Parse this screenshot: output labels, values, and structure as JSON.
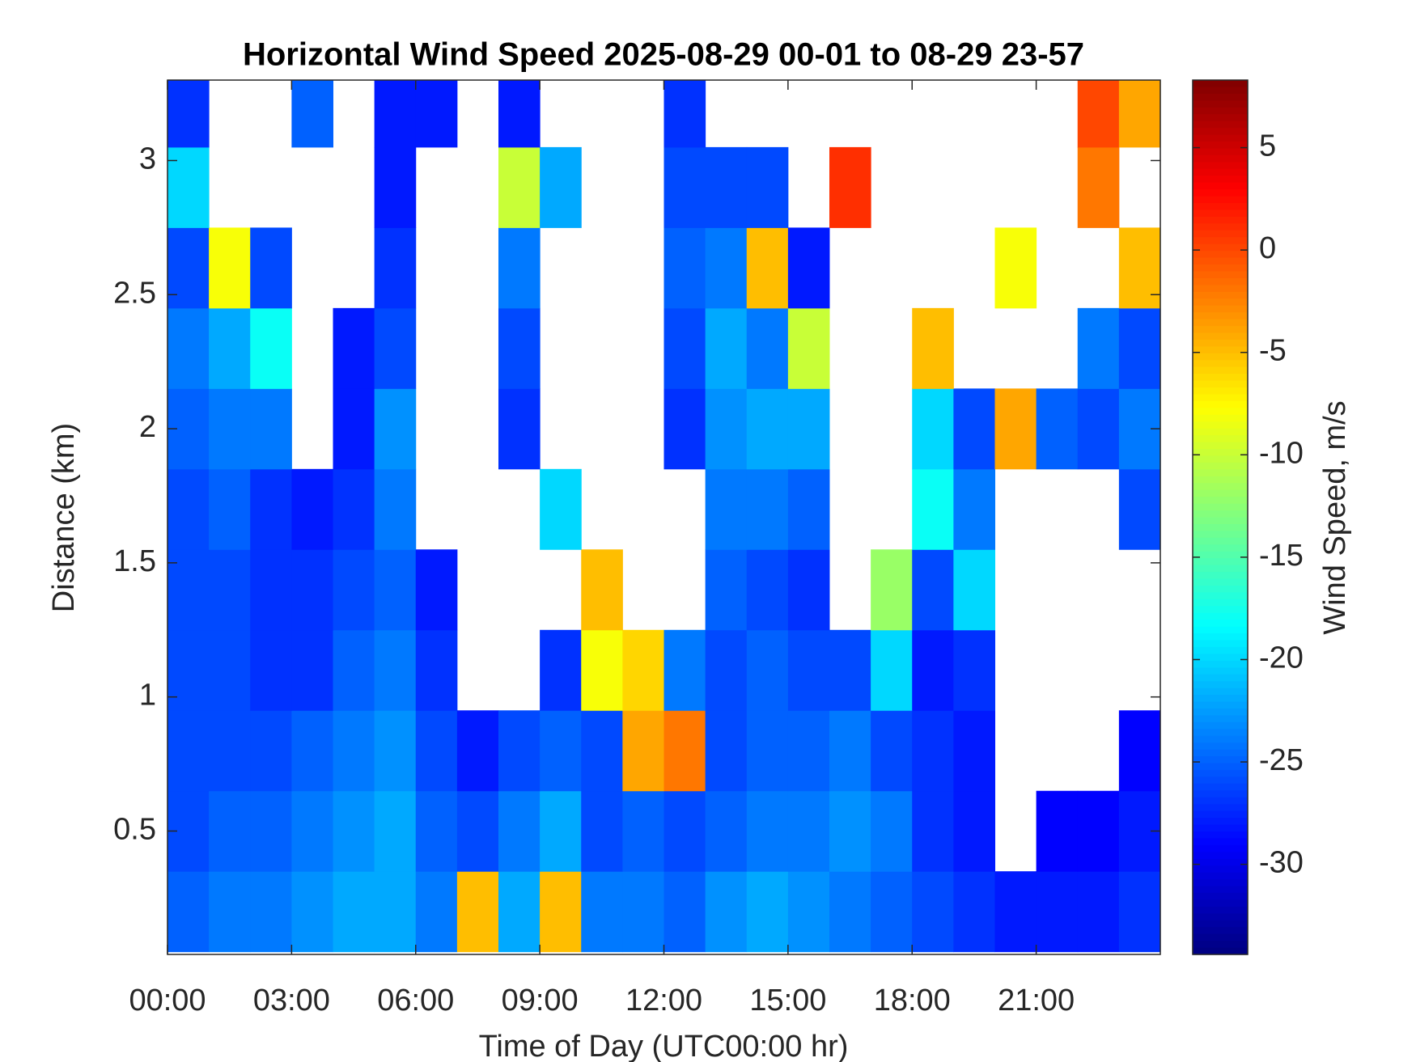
{
  "chart_data": {
    "type": "heatmap",
    "title": "Horizontal Wind Speed 2025-08-29 00-01 to 08-29 23-57",
    "x_label": "Time of Day (UTC00:00 hr)",
    "y_label": "Distance (km)",
    "colorbar_label": "Wind Speed, m/s",
    "colormap": "jet",
    "xlim": [
      0,
      24
    ],
    "ylim": [
      0.04,
      3.3
    ],
    "clim": [
      -34.4,
      8.3
    ],
    "xticks": [
      {
        "value": 0,
        "label": "00:00"
      },
      {
        "value": 3,
        "label": "03:00"
      },
      {
        "value": 6,
        "label": "06:00"
      },
      {
        "value": 9,
        "label": "09:00"
      },
      {
        "value": 12,
        "label": "12:00"
      },
      {
        "value": 15,
        "label": "15:00"
      },
      {
        "value": 18,
        "label": "18:00"
      },
      {
        "value": 21,
        "label": "21:00"
      }
    ],
    "yticks": [
      0.5,
      1,
      1.5,
      2,
      2.5,
      3
    ],
    "cticks": [
      -30,
      -25,
      -20,
      -15,
      -10,
      -5,
      0,
      5
    ],
    "x": [
      0.5,
      1.5,
      2.5,
      3.5,
      4.5,
      5.5,
      6.5,
      7.5,
      8.5,
      9.5,
      10.5,
      11.5,
      12.5,
      13.5,
      14.5,
      15.5,
      16.5,
      17.5,
      18.5,
      19.5,
      20.5,
      21.5,
      22.5,
      23.5
    ],
    "y": [
      0.2,
      0.5,
      0.8,
      1.1,
      1.4,
      1.7,
      2.0,
      2.3,
      2.6,
      2.9,
      3.2
    ],
    "z": [
      [
        -25,
        -24,
        -24,
        -23,
        -22,
        -22,
        -24,
        -5,
        -22,
        -5,
        -24,
        -24,
        -25,
        -23,
        -22,
        -23,
        -24,
        -25,
        -26,
        -27,
        -28,
        -28,
        -28,
        -27
      ],
      [
        -26,
        -25,
        -25,
        -24,
        -23,
        -22,
        -25,
        -26,
        -24,
        -22,
        -26,
        -25,
        -26,
        -25,
        -24,
        -24,
        -23,
        -24,
        -27,
        -28,
        null,
        -29,
        -29,
        -28
      ],
      [
        -26,
        -26,
        -26,
        -25,
        -24,
        -23,
        -26,
        -28,
        -26,
        -25,
        -26,
        -4,
        -2,
        -26,
        -25,
        -25,
        -24,
        -26,
        -27,
        -28,
        null,
        null,
        null,
        -29
      ],
      [
        -26,
        -26,
        -27,
        -27,
        -25,
        -24,
        -27,
        null,
        null,
        -27,
        -8,
        -6,
        -24,
        -26,
        -25,
        -26,
        -26,
        -20,
        -28,
        -27,
        null,
        null,
        null,
        null
      ],
      [
        -26,
        -26,
        -27,
        -27,
        -26,
        -25,
        -28,
        null,
        null,
        null,
        -5,
        null,
        null,
        -25,
        -26,
        -27,
        null,
        -12,
        -26,
        -20,
        null,
        null,
        null,
        null
      ],
      [
        -26,
        -25,
        -27,
        -28,
        -27,
        -24,
        null,
        null,
        null,
        -20,
        null,
        null,
        null,
        -24,
        -24,
        -25,
        null,
        null,
        -18,
        -24,
        null,
        null,
        null,
        -26
      ],
      [
        -25,
        -24,
        -24,
        null,
        -28,
        -23,
        null,
        null,
        -27,
        null,
        null,
        null,
        -27,
        -23,
        -22,
        -22,
        null,
        null,
        -20,
        -26,
        -4,
        -25,
        -26,
        -24
      ],
      [
        -24,
        -22,
        -18,
        null,
        -28,
        -26,
        null,
        null,
        -26,
        null,
        null,
        null,
        -26,
        -22,
        -24,
        -10,
        null,
        null,
        -5,
        null,
        null,
        null,
        -24,
        -26
      ],
      [
        -26,
        -8,
        -26,
        null,
        null,
        -27,
        null,
        null,
        -24,
        null,
        null,
        null,
        -25,
        -24,
        -5,
        -28,
        null,
        null,
        null,
        null,
        -8,
        null,
        null,
        -5
      ],
      [
        -20,
        null,
        null,
        null,
        null,
        -28,
        null,
        null,
        -10,
        -22,
        null,
        null,
        -26,
        -26,
        -26,
        null,
        1,
        null,
        null,
        null,
        null,
        null,
        -2,
        null
      ],
      [
        -27,
        null,
        null,
        -25,
        null,
        -28,
        -28,
        null,
        -28,
        null,
        null,
        null,
        -27,
        null,
        null,
        null,
        null,
        null,
        null,
        null,
        null,
        null,
        0,
        -4
      ]
    ]
  }
}
